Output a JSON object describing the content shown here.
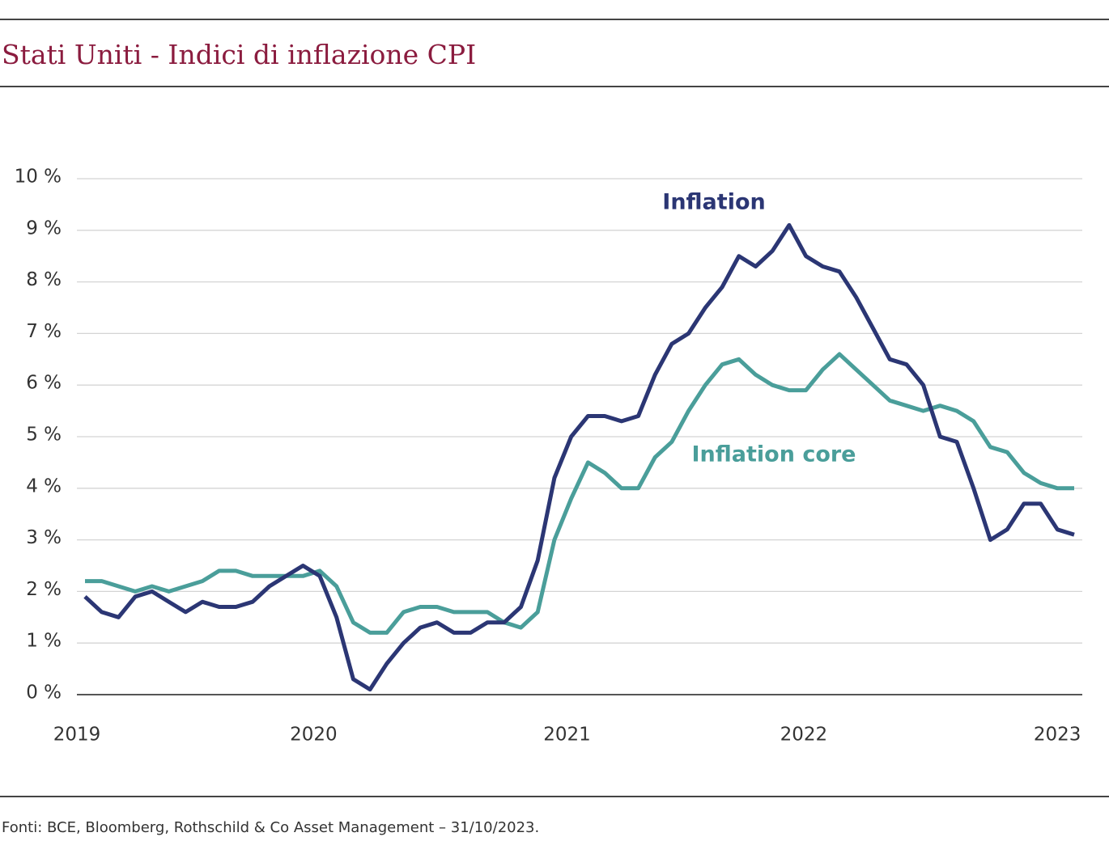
{
  "chart_data": {
    "type": "line",
    "title": "Stati Uniti - Indici di inflazione CPI",
    "source": "Fonti: BCE, Bloomberg, Rothschild & Co Asset Management – 31/10/2023.",
    "categories": [
      "2019",
      null,
      null,
      null,
      null,
      null,
      null,
      null,
      null,
      null,
      null,
      null,
      null,
      null,
      "2020",
      null,
      null,
      null,
      null,
      null,
      null,
      null,
      null,
      null,
      null,
      null,
      null,
      null,
      null,
      "2021",
      null,
      null,
      null,
      null,
      null,
      null,
      null,
      null,
      null,
      null,
      null,
      null,
      null,
      "2022",
      null,
      null,
      null,
      null,
      null,
      null,
      null,
      null,
      null,
      null,
      null,
      null,
      null,
      null,
      "2023",
      null
    ],
    "series": [
      {
        "name": "Inflation",
        "color": "#2b3674",
        "values": [
          1.9,
          1.6,
          1.5,
          1.9,
          2.0,
          1.8,
          1.6,
          1.8,
          1.7,
          1.7,
          1.8,
          2.1,
          2.3,
          2.5,
          2.3,
          1.5,
          0.3,
          0.1,
          0.6,
          1.0,
          1.3,
          1.4,
          1.2,
          1.2,
          1.4,
          1.4,
          1.7,
          2.6,
          4.2,
          5.0,
          5.4,
          5.4,
          5.3,
          5.4,
          6.2,
          6.8,
          7.0,
          7.5,
          7.9,
          8.5,
          8.3,
          8.6,
          9.1,
          8.5,
          8.3,
          8.2,
          7.7,
          7.1,
          6.5,
          6.4,
          6.0,
          5.0,
          4.9,
          4.0,
          3.0,
          3.2,
          3.7,
          3.7,
          3.2,
          3.1
        ]
      },
      {
        "name": "Inflation core",
        "color": "#4a9e9a",
        "values": [
          2.2,
          2.2,
          2.1,
          2.0,
          2.1,
          2.0,
          2.1,
          2.2,
          2.4,
          2.4,
          2.3,
          2.3,
          2.3,
          2.3,
          2.4,
          2.1,
          1.4,
          1.2,
          1.2,
          1.6,
          1.7,
          1.7,
          1.6,
          1.6,
          1.6,
          1.4,
          1.3,
          1.6,
          3.0,
          3.8,
          4.5,
          4.3,
          4.0,
          4.0,
          4.6,
          4.9,
          5.5,
          6.0,
          6.4,
          6.5,
          6.2,
          6.0,
          5.9,
          5.9,
          6.3,
          6.6,
          6.3,
          6.0,
          5.7,
          5.6,
          5.5,
          5.6,
          5.5,
          5.3,
          4.8,
          4.7,
          4.3,
          4.1,
          4.0,
          4.0
        ]
      }
    ],
    "ylim": [
      0,
      10
    ],
    "yticks": [
      {
        "value": 0,
        "label": "0 %"
      },
      {
        "value": 1,
        "label": "1 %"
      },
      {
        "value": 2,
        "label": "2 %"
      },
      {
        "value": 3,
        "label": "3 %"
      },
      {
        "value": 4,
        "label": "4 %"
      },
      {
        "value": 5,
        "label": "5 %"
      },
      {
        "value": 6,
        "label": "6 %"
      },
      {
        "value": 7,
        "label": "7 %"
      },
      {
        "value": 8,
        "label": "8 %"
      },
      {
        "value": 9,
        "label": "9 %"
      },
      {
        "value": 10,
        "label": "10 %"
      }
    ],
    "grid": true
  }
}
